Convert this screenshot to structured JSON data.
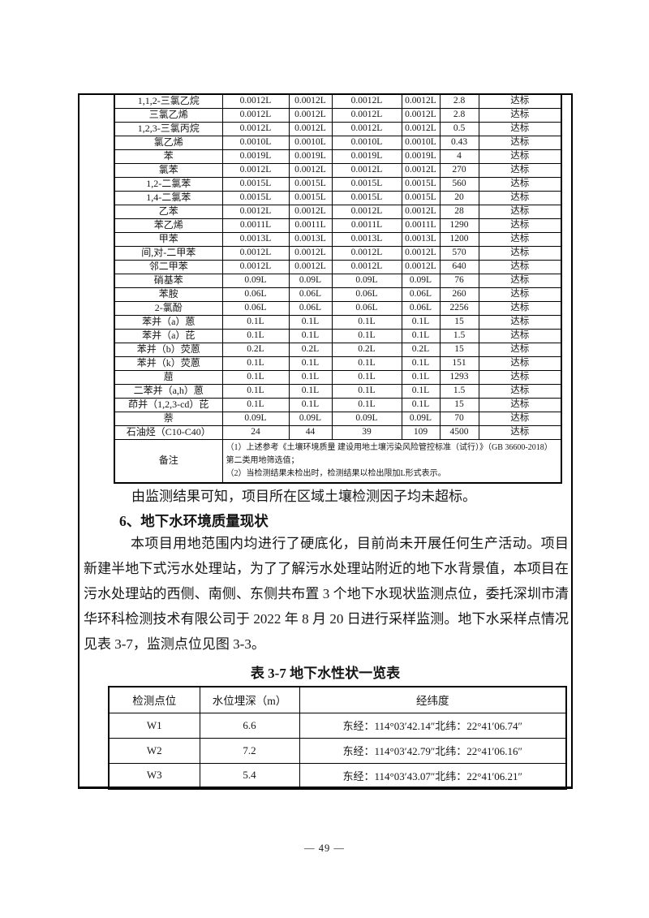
{
  "soil_table": {
    "rows": [
      [
        "1,1,2-三氯乙烷",
        "0.0012L",
        "0.0012L",
        "0.0012L",
        "0.0012L",
        "2.8",
        "达标"
      ],
      [
        "三氯乙烯",
        "0.0012L",
        "0.0012L",
        "0.0012L",
        "0.0012L",
        "2.8",
        "达标"
      ],
      [
        "1,2,3-三氯丙烷",
        "0.0012L",
        "0.0012L",
        "0.0012L",
        "0.0012L",
        "0.5",
        "达标"
      ],
      [
        "氯乙烯",
        "0.0010L",
        "0.0010L",
        "0.0010L",
        "0.0010L",
        "0.43",
        "达标"
      ],
      [
        "苯",
        "0.0019L",
        "0.0019L",
        "0.0019L",
        "0.0019L",
        "4",
        "达标"
      ],
      [
        "氯苯",
        "0.0012L",
        "0.0012L",
        "0.0012L",
        "0.0012L",
        "270",
        "达标"
      ],
      [
        "1,2-二氯苯",
        "0.0015L",
        "0.0015L",
        "0.0015L",
        "0.0015L",
        "560",
        "达标"
      ],
      [
        "1,4-二氯苯",
        "0.0015L",
        "0.0015L",
        "0.0015L",
        "0.0015L",
        "20",
        "达标"
      ],
      [
        "乙苯",
        "0.0012L",
        "0.0012L",
        "0.0012L",
        "0.0012L",
        "28",
        "达标"
      ],
      [
        "苯乙烯",
        "0.0011L",
        "0.0011L",
        "0.0011L",
        "0.0011L",
        "1290",
        "达标"
      ],
      [
        "甲苯",
        "0.0013L",
        "0.0013L",
        "0.0013L",
        "0.0013L",
        "1200",
        "达标"
      ],
      [
        "间,对-二甲苯",
        "0.0012L",
        "0.0012L",
        "0.0012L",
        "0.0012L",
        "570",
        "达标"
      ],
      [
        "邻二甲苯",
        "0.0012L",
        "0.0012L",
        "0.0012L",
        "0.0012L",
        "640",
        "达标"
      ],
      [
        "硝基苯",
        "0.09L",
        "0.09L",
        "0.09L",
        "0.09L",
        "76",
        "达标"
      ],
      [
        "苯胺",
        "0.06L",
        "0.06L",
        "0.06L",
        "0.06L",
        "260",
        "达标"
      ],
      [
        "2-氯酚",
        "0.06L",
        "0.06L",
        "0.06L",
        "0.06L",
        "2256",
        "达标"
      ],
      [
        "苯并（a）蒽",
        "0.1L",
        "0.1L",
        "0.1L",
        "0.1L",
        "15",
        "达标"
      ],
      [
        "苯并（a）芘",
        "0.1L",
        "0.1L",
        "0.1L",
        "0.1L",
        "1.5",
        "达标"
      ],
      [
        "苯并（b）荧蒽",
        "0.2L",
        "0.2L",
        "0.2L",
        "0.2L",
        "15",
        "达标"
      ],
      [
        "苯并（k）荧蒽",
        "0.1L",
        "0.1L",
        "0.1L",
        "0.1L",
        "151",
        "达标"
      ],
      [
        "䓛",
        "0.1L",
        "0.1L",
        "0.1L",
        "0.1L",
        "1293",
        "达标"
      ],
      [
        "二苯并（a,h）蒽",
        "0.1L",
        "0.1L",
        "0.1L",
        "0.1L",
        "1.5",
        "达标"
      ],
      [
        "茚并（1,2,3-cd）芘",
        "0.1L",
        "0.1L",
        "0.1L",
        "0.1L",
        "15",
        "达标"
      ],
      [
        "萘",
        "0.09L",
        "0.09L",
        "0.09L",
        "0.09L",
        "70",
        "达标"
      ],
      [
        "石油烃（C10-C40）",
        "24",
        "44",
        "39",
        "109",
        "4500",
        "达标"
      ]
    ],
    "note_label": "备注",
    "notes": [
      "（1）上述参考《土壤环境质量 建设用地土壤污染风险管控标准（试行）》（GB 36600-2018）第二类用地筛选值；",
      "（2）当检测结果未检出时，检测结果以检出限加L形式表示。"
    ]
  },
  "body": {
    "conclusion_line": "由监测结果可知，项目所在区域土壤检测因子均未超标。",
    "section_heading": "6、地下水环境质量现状",
    "paragraph": "本项目用地范围内均进行了硬底化，目前尚未开展任何生产活动。项目新建半地下式污水处理站，为了了解污水处理站附近的地下水背景值，本项目在污水处理站的西侧、南侧、东侧共布置 3 个地下水现状监测点位，委托深圳市清华环科检测技术有限公司于 2022 年 8 月 20 日进行采样监测。地下水采样点情况见表 3-7，监测点位见图 3-3。"
  },
  "groundwater_table": {
    "title": "表 3-7 地下水性状一览表",
    "headers": [
      "检测点位",
      "水位埋深（m）",
      "经纬度"
    ],
    "rows": [
      [
        "W1",
        "6.6",
        "东经：114°03′42.14″北纬：22°41′06.74″"
      ],
      [
        "W2",
        "7.2",
        "东经：114°03′42.79″北纬：22°41′06.16″"
      ],
      [
        "W3",
        "5.4",
        "东经：114°03′43.07″北纬：22°41′06.21″"
      ]
    ]
  },
  "page": {
    "page_number": "— 49 —"
  }
}
